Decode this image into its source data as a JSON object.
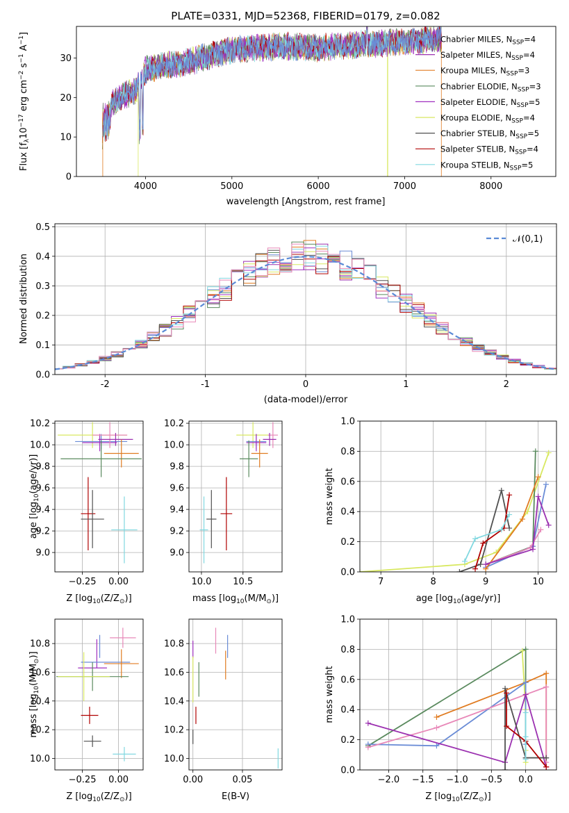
{
  "palette": {
    "Chabrier MILES": "#6a8cd6",
    "Salpeter MILES": "#9b30b0",
    "Kroupa MILES": "#e07b20",
    "Chabrier ELODIE": "#5a8a5e",
    "Salpeter ELODIE": "#a030c0",
    "Kroupa ELODIE": "#d8e860",
    "Chabrier STELIB": "#505050",
    "Salpeter STELIB": "#b00000",
    "Kroupa STELIB": "#80d8e0",
    "Extra pink": "#e888b8",
    "Normal": "#5a8ad6"
  },
  "chart_data": [
    {
      "id": "spectrum",
      "type": "line",
      "title": "PLATE=0331, MJD=52368, FIBERID=0179, z=0.082",
      "xlabel": "wavelength [Angstrom, rest frame]",
      "ylabel": "Flux [f",
      "xlim": [
        3200,
        8750
      ],
      "ylim": [
        0,
        38
      ],
      "xticks": [
        4000,
        5000,
        6000,
        7000,
        8000
      ],
      "yticks": [
        0,
        10,
        20,
        30
      ],
      "legend": "top-right",
      "legend_labels": [
        {
          "name": "Chabrier MILES",
          "n": "4"
        },
        {
          "name": "Salpeter MILES",
          "n": "4"
        },
        {
          "name": "Kroupa MILES",
          "n": "3"
        },
        {
          "name": "Chabrier ELODIE",
          "n": "3"
        },
        {
          "name": "Salpeter ELODIE",
          "n": "5"
        },
        {
          "name": "Kroupa ELODIE",
          "n": "4"
        },
        {
          "name": "Chabrier STELIB",
          "n": "5"
        },
        {
          "name": "Salpeter STELIB",
          "n": "4"
        },
        {
          "name": "Kroupa STELIB",
          "n": "5"
        }
      ],
      "continuum": [
        [
          3500,
          16
        ],
        [
          3700,
          20
        ],
        [
          3900,
          22
        ],
        [
          4000,
          27
        ],
        [
          4200,
          28
        ],
        [
          4500,
          29
        ],
        [
          4800,
          31
        ],
        [
          5000,
          32
        ],
        [
          5200,
          32.5
        ],
        [
          5600,
          33
        ],
        [
          6000,
          32.5
        ],
        [
          6500,
          33.5
        ],
        [
          7000,
          34
        ],
        [
          7400,
          35
        ]
      ],
      "drops": [
        [
          3500,
          0
        ],
        [
          3920,
          0
        ],
        [
          6800,
          0
        ],
        [
          7430,
          0
        ]
      ]
    },
    {
      "id": "residuals",
      "type": "bar",
      "xlabel": "(data-model)/error",
      "ylabel": "Normed distribution",
      "xlim": [
        -2.5,
        2.5
      ],
      "ylim": [
        0,
        0.51
      ],
      "xticks": [
        -2,
        -1,
        0,
        1,
        2
      ],
      "yticks": [
        0.0,
        0.1,
        0.2,
        0.3,
        0.4,
        0.5
      ],
      "legend": "top-right",
      "normal_label": "𝒩(0,1)",
      "bin_width": 0.12
    },
    {
      "id": "age-vs-Z",
      "type": "scatter",
      "xlabel": "Z [log",
      "ylabel": "age  [log",
      "xlim": [
        -0.44,
        0.17
      ],
      "ylim": [
        8.82,
        10.22
      ],
      "xticks": [
        -0.25,
        0.0
      ],
      "xtick_labels": [
        "−0.25",
        "0.00"
      ],
      "yticks": [
        9.0,
        9.2,
        9.4,
        9.6,
        9.8,
        10.0,
        10.2
      ],
      "points": [
        {
          "c": "Kroupa ELODIE",
          "x": -0.18,
          "y": 10.09,
          "ex": 0.24,
          "ey": 0.12
        },
        {
          "c": "Chabrier MILES",
          "x": -0.12,
          "y": 10.03,
          "ex": 0.18,
          "ey": 0.07
        },
        {
          "c": "Salpeter ELODIE",
          "x": -0.13,
          "y": 10.02,
          "ex": 0.12,
          "ey": 0.08
        },
        {
          "c": "Extra pink",
          "x": -0.06,
          "y": 10.09,
          "ex": 0.12,
          "ey": 0.12
        },
        {
          "c": "Salpeter MILES",
          "x": -0.02,
          "y": 10.05,
          "ex": 0.12,
          "ey": 0.06
        },
        {
          "c": "Kroupa MILES",
          "x": 0.02,
          "y": 9.92,
          "ex": 0.12,
          "ey": 0.13
        },
        {
          "c": "Chabrier ELODIE",
          "x": -0.12,
          "y": 9.87,
          "ex": 0.28,
          "ey": 0.17
        },
        {
          "c": "Salpeter STELIB",
          "x": -0.21,
          "y": 9.36,
          "ex": 0.05,
          "ey": 0.34
        },
        {
          "c": "Chabrier STELIB",
          "x": -0.18,
          "y": 9.31,
          "ex": 0.08,
          "ey": 0.27
        },
        {
          "c": "Kroupa STELIB",
          "x": 0.04,
          "y": 9.21,
          "ex": 0.09,
          "ey": 0.31
        }
      ]
    },
    {
      "id": "age-vs-mass",
      "type": "scatter",
      "xlabel": "mass [log",
      "xlim": [
        9.85,
        10.97
      ],
      "ylim": [
        8.82,
        10.22
      ],
      "xticks": [
        10.0,
        10.5
      ],
      "xtick_labels": [
        "10.0",
        "10.5"
      ],
      "yticks": [
        9.0,
        9.2,
        9.4,
        9.6,
        9.8,
        10.0,
        10.2
      ],
      "points": [
        {
          "c": "Kroupa ELODIE",
          "x": 10.62,
          "y": 10.09,
          "ex": 0.2,
          "ey": 0.12
        },
        {
          "c": "Chabrier MILES",
          "x": 10.66,
          "y": 10.03,
          "ex": 0.12,
          "ey": 0.07
        },
        {
          "c": "Salpeter ELODIE",
          "x": 10.66,
          "y": 10.02,
          "ex": 0.12,
          "ey": 0.08
        },
        {
          "c": "Extra pink",
          "x": 10.86,
          "y": 10.09,
          "ex": 0.06,
          "ey": 0.12
        },
        {
          "c": "Salpeter MILES",
          "x": 10.82,
          "y": 10.05,
          "ex": 0.08,
          "ey": 0.06
        },
        {
          "c": "Kroupa MILES",
          "x": 10.7,
          "y": 9.92,
          "ex": 0.1,
          "ey": 0.13
        },
        {
          "c": "Chabrier ELODIE",
          "x": 10.57,
          "y": 9.87,
          "ex": 0.11,
          "ey": 0.17
        },
        {
          "c": "Salpeter STELIB",
          "x": 10.3,
          "y": 9.36,
          "ex": 0.07,
          "ey": 0.34
        },
        {
          "c": "Chabrier STELIB",
          "x": 10.12,
          "y": 9.31,
          "ex": 0.06,
          "ey": 0.27
        },
        {
          "c": "Kroupa STELIB",
          "x": 10.03,
          "y": 9.21,
          "ex": 0.05,
          "ey": 0.31
        }
      ]
    },
    {
      "id": "weight-vs-age",
      "type": "line",
      "xlabel": "age  [log",
      "ylabel": "mass weight",
      "xlim": [
        6.6,
        10.35
      ],
      "ylim": [
        0,
        1.0
      ],
      "xticks": [
        7,
        8,
        9,
        10
      ],
      "yticks": [
        0.0,
        0.2,
        0.4,
        0.6,
        0.8,
        1.0
      ],
      "series": [
        {
          "c": "Kroupa ELODIE",
          "pts": [
            [
              6.6,
              0.0
            ],
            [
              8.6,
              0.05
            ],
            [
              9.2,
              0.13
            ],
            [
              9.8,
              0.4
            ],
            [
              10.2,
              0.79
            ]
          ]
        },
        {
          "c": "Chabrier ELODIE",
          "pts": [
            [
              9.0,
              0.05
            ],
            [
              9.9,
              0.17
            ],
            [
              9.95,
              0.8
            ]
          ]
        },
        {
          "c": "Chabrier STELIB",
          "pts": [
            [
              8.5,
              0.0
            ],
            [
              8.9,
              0.05
            ],
            [
              9.3,
              0.54
            ],
            [
              9.45,
              0.29
            ]
          ]
        },
        {
          "c": "Salpeter STELIB",
          "pts": [
            [
              8.8,
              0.02
            ],
            [
              8.95,
              0.19
            ],
            [
              9.35,
              0.29
            ],
            [
              9.45,
              0.51
            ]
          ]
        },
        {
          "c": "Kroupa STELIB",
          "pts": [
            [
              8.6,
              0.07
            ],
            [
              8.8,
              0.22
            ],
            [
              9.3,
              0.28
            ],
            [
              9.45,
              0.38
            ]
          ]
        },
        {
          "c": "Chabrier MILES",
          "pts": [
            [
              9.0,
              0.03
            ],
            [
              9.9,
              0.17
            ],
            [
              10.15,
              0.58
            ]
          ]
        },
        {
          "c": "Kroupa MILES",
          "pts": [
            [
              9.0,
              0.02
            ],
            [
              9.7,
              0.35
            ],
            [
              10.0,
              0.63
            ]
          ]
        },
        {
          "c": "Extra pink",
          "pts": [
            [
              9.0,
              0.05
            ],
            [
              9.85,
              0.16
            ],
            [
              10.05,
              0.28
            ]
          ]
        },
        {
          "c": "Salpeter MILES",
          "pts": [
            [
              9.0,
              0.05
            ],
            [
              9.9,
              0.15
            ],
            [
              10.0,
              0.5
            ],
            [
              10.2,
              0.31
            ]
          ]
        }
      ]
    },
    {
      "id": "mass-vs-Z",
      "type": "scatter",
      "xlabel": "Z [log",
      "ylabel": "mass [log",
      "xlim": [
        -0.44,
        0.17
      ],
      "ylim": [
        9.92,
        10.97
      ],
      "xticks": [
        -0.25,
        0.0
      ],
      "xtick_labels": [
        "−0.25",
        "0.00"
      ],
      "yticks": [
        10.0,
        10.2,
        10.4,
        10.6,
        10.8
      ],
      "points": [
        {
          "c": "Extra pink",
          "x": 0.03,
          "y": 10.84,
          "ex": 0.09,
          "ey": 0.07
        },
        {
          "c": "Chabrier MILES",
          "x": -0.13,
          "y": 10.78,
          "ex": 0.0,
          "ey": 0.08
        },
        {
          "c": "Salpeter ELODIE",
          "x": -0.15,
          "y": 10.73,
          "ex": 0.0,
          "ey": 0.1
        },
        {
          "c": "Chabrier MILES",
          "x": -0.09,
          "y": 10.67,
          "ex": 0.17,
          "ey": 0.0
        },
        {
          "c": "Kroupa MILES",
          "x": 0.02,
          "y": 10.66,
          "ex": 0.12,
          "ey": 0.1
        },
        {
          "c": "Salpeter ELODIE",
          "x": -0.18,
          "y": 10.63,
          "ex": 0.1,
          "ey": 0.0
        },
        {
          "c": "Chabrier ELODIE",
          "x": -0.18,
          "y": 10.57,
          "ex": 0.25,
          "ey": 0.1
        },
        {
          "c": "Kroupa ELODIE",
          "x": -0.24,
          "y": 10.57,
          "ex": 0.18,
          "ey": 0.17
        },
        {
          "c": "Salpeter STELIB",
          "x": -0.2,
          "y": 10.3,
          "ex": 0.06,
          "ey": 0.06
        },
        {
          "c": "Chabrier STELIB",
          "x": -0.18,
          "y": 10.12,
          "ex": 0.06,
          "ey": 0.04
        },
        {
          "c": "Kroupa STELIB",
          "x": 0.04,
          "y": 10.03,
          "ex": 0.08,
          "ey": 0.05
        }
      ]
    },
    {
      "id": "mass-vs-ebv",
      "type": "scatter",
      "xlabel": "E(B-V)",
      "xlim": [
        -0.004,
        0.09
      ],
      "ylim": [
        9.92,
        10.97
      ],
      "xticks": [
        0.0,
        0.05
      ],
      "xtick_labels": [
        "0.00",
        "0.05"
      ],
      "yticks": [
        10.0,
        10.2,
        10.4,
        10.6,
        10.8
      ],
      "points": [
        {
          "c": "Extra pink",
          "x": 0.023,
          "y": 10.82,
          "ex": 0.0,
          "ey": 0.09
        },
        {
          "c": "Chabrier MILES",
          "x": 0.035,
          "y": 10.78,
          "ex": 0.0,
          "ey": 0.08
        },
        {
          "c": "Salpeter ELODIE",
          "x": 0.0,
          "y": 10.76,
          "ex": 0.0,
          "ey": 0.06
        },
        {
          "c": "Kroupa MILES",
          "x": 0.033,
          "y": 10.65,
          "ex": 0.0,
          "ey": 0.1
        },
        {
          "c": "Chabrier ELODIE",
          "x": 0.006,
          "y": 10.55,
          "ex": 0.0,
          "ey": 0.12
        },
        {
          "c": "Kroupa ELODIE",
          "x": 0.0,
          "y": 10.55,
          "ex": 0.0,
          "ey": 0.16
        },
        {
          "c": "Salpeter STELIB",
          "x": 0.003,
          "y": 10.3,
          "ex": 0.0,
          "ey": 0.06
        },
        {
          "c": "Chabrier STELIB",
          "x": 0.0,
          "y": 10.15,
          "ex": 0.0,
          "ey": 0.05
        },
        {
          "c": "Kroupa STELIB",
          "x": 0.086,
          "y": 10.0,
          "ex": 0.0,
          "ey": 0.07
        }
      ]
    },
    {
      "id": "weight-vs-Z",
      "type": "line",
      "xlabel": "Z [log",
      "ylabel": "mass weight",
      "xlim": [
        -2.42,
        0.45
      ],
      "ylim": [
        0,
        1.0
      ],
      "xticks": [
        -2.0,
        -1.5,
        -1.0,
        -0.5,
        0.0
      ],
      "xtick_labels": [
        "−2.0",
        "−1.5",
        "−1.0",
        "−0.5",
        "0.0"
      ],
      "yticks": [
        0.0,
        0.2,
        0.4,
        0.6,
        0.8,
        1.0
      ],
      "series": [
        {
          "c": "Chabrier ELODIE",
          "pts": [
            [
              -2.3,
              0.16
            ],
            [
              0.0,
              0.8
            ],
            [
              0.0,
              0.08
            ],
            [
              0.3,
              0.08
            ]
          ]
        },
        {
          "c": "Kroupa ELODIE",
          "pts": [
            [
              -0.05,
              0.79
            ],
            [
              0.0,
              0.4
            ],
            [
              0.0,
              0.13
            ],
            [
              0.0,
              0.05
            ]
          ]
        },
        {
          "c": "Kroupa MILES",
          "pts": [
            [
              -1.3,
              0.35
            ],
            [
              0.0,
              0.58
            ],
            [
              0.3,
              0.64
            ],
            [
              0.3,
              0.02
            ]
          ]
        },
        {
          "c": "Chabrier MILES",
          "pts": [
            [
              -2.3,
              0.17
            ],
            [
              -1.3,
              0.16
            ],
            [
              0.0,
              0.58
            ],
            [
              0.0,
              0.17
            ]
          ]
        },
        {
          "c": "Extra pink",
          "pts": [
            [
              -2.3,
              0.15
            ],
            [
              -1.3,
              0.28
            ],
            [
              0.3,
              0.55
            ],
            [
              0.3,
              0.05
            ]
          ]
        },
        {
          "c": "Salpeter MILES",
          "pts": [
            [
              -2.3,
              0.31
            ],
            [
              -0.3,
              0.05
            ],
            [
              0.0,
              0.5
            ],
            [
              0.3,
              0.02
            ]
          ]
        },
        {
          "c": "Chabrier STELIB",
          "pts": [
            [
              -0.3,
              0.0
            ],
            [
              -0.3,
              0.54
            ],
            [
              0.0,
              0.08
            ],
            [
              0.3,
              0.08
            ]
          ]
        },
        {
          "c": "Salpeter STELIB",
          "pts": [
            [
              -0.28,
              0.51
            ],
            [
              -0.28,
              0.29
            ],
            [
              0.0,
              0.19
            ],
            [
              0.3,
              0.02
            ]
          ]
        },
        {
          "c": "Kroupa STELIB",
          "pts": [
            [
              0.0,
              0.38
            ],
            [
              0.0,
              0.22
            ],
            [
              0.0,
              0.07
            ]
          ]
        }
      ]
    }
  ]
}
